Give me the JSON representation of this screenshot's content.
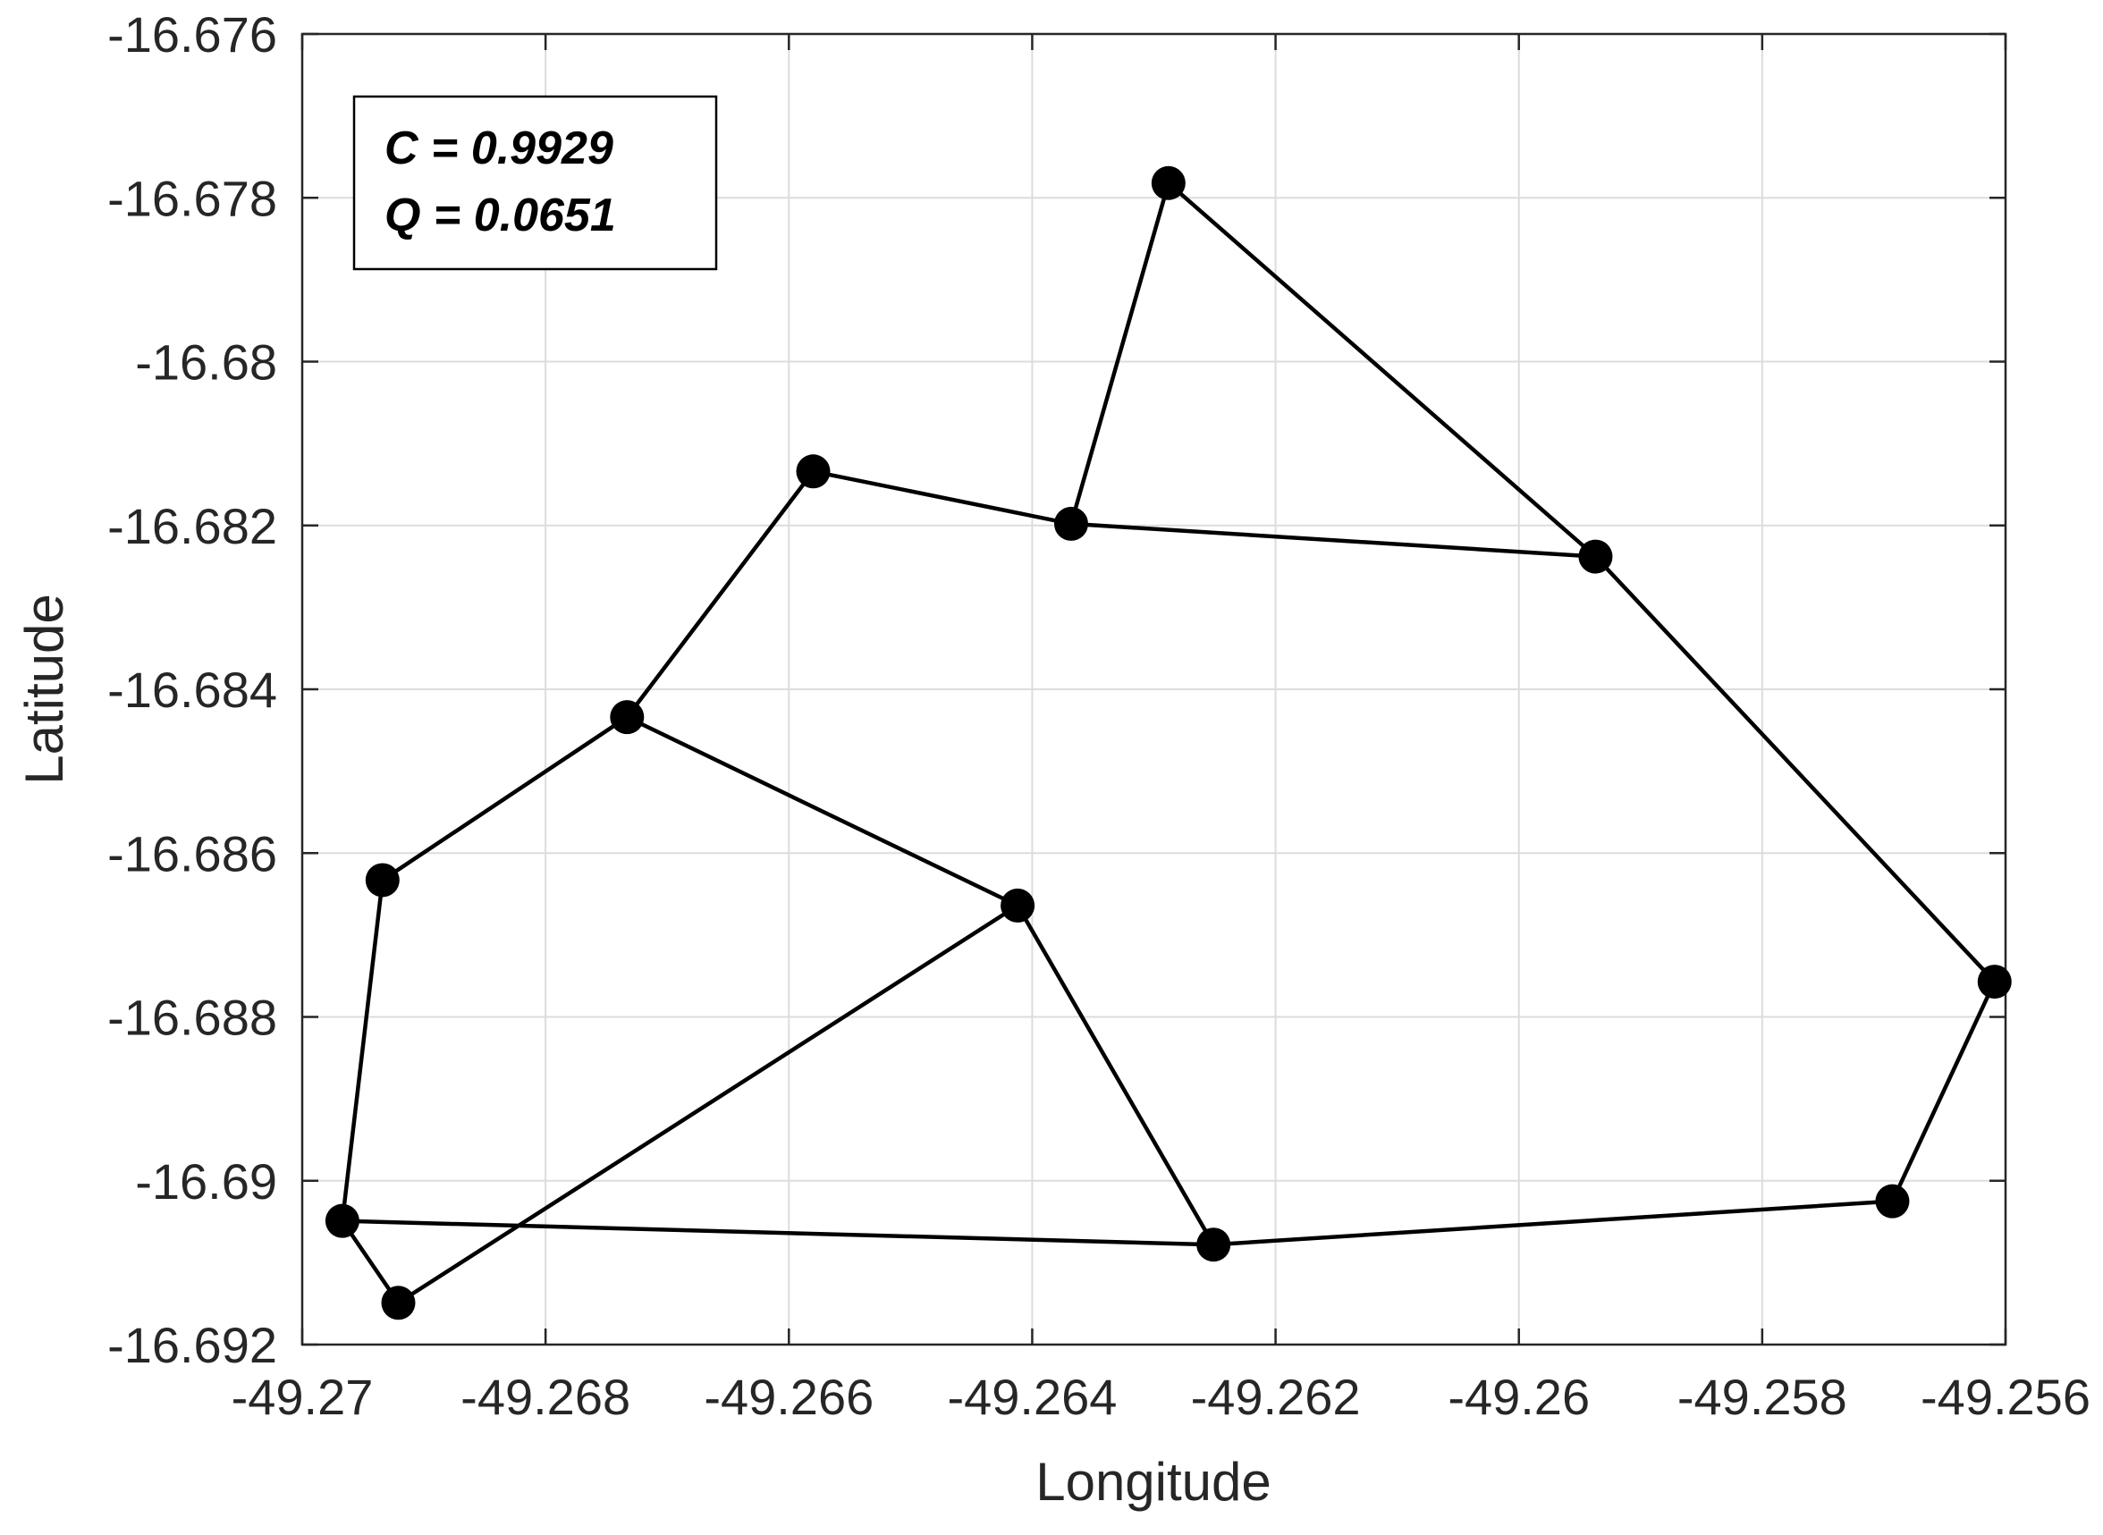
{
  "chart_data": {
    "type": "line",
    "title": "",
    "xlabel": "Longitude",
    "ylabel": "Latitude",
    "xlim": [
      -49.27,
      -49.256
    ],
    "ylim": [
      -16.692,
      -16.676
    ],
    "grid": true,
    "xticks": [
      -49.27,
      -49.268,
      -49.266,
      -49.264,
      -49.262,
      -49.26,
      -49.258,
      -49.256
    ],
    "xtick_labels": [
      "-49.27",
      "-49.268",
      "-49.266",
      "-49.264",
      "-49.262",
      "-49.26",
      "-49.258",
      "-49.256"
    ],
    "yticks": [
      -16.676,
      -16.678,
      -16.68,
      -16.682,
      -16.684,
      -16.686,
      -16.688,
      -16.69,
      -16.692
    ],
    "ytick_labels": [
      "-16.676",
      "-16.678",
      "-16.68",
      "-16.682",
      "-16.684",
      "-16.686",
      "-16.688",
      "-16.69",
      "-16.692"
    ],
    "nodes": [
      {
        "x": -49.26288,
        "y": -16.67782
      },
      {
        "x": -49.26368,
        "y": -16.68198
      },
      {
        "x": -49.2658,
        "y": -16.68134
      },
      {
        "x": -49.26733,
        "y": -16.68434
      },
      {
        "x": -49.26934,
        "y": -16.68633
      },
      {
        "x": -49.26967,
        "y": -16.69049
      },
      {
        "x": -49.26921,
        "y": -16.69149
      },
      {
        "x": -49.26412,
        "y": -16.68664
      },
      {
        "x": -49.26251,
        "y": -16.69078
      },
      {
        "x": -49.25693,
        "y": -16.69025
      },
      {
        "x": -49.25609,
        "y": -16.68757
      },
      {
        "x": -49.25937,
        "y": -16.68238
      }
    ],
    "edges": [
      [
        0,
        1
      ],
      [
        1,
        2
      ],
      [
        2,
        3
      ],
      [
        3,
        4
      ],
      [
        4,
        5
      ],
      [
        5,
        6
      ],
      [
        6,
        7
      ],
      [
        7,
        3
      ],
      [
        7,
        8
      ],
      [
        8,
        5
      ],
      [
        8,
        9
      ],
      [
        9,
        10
      ],
      [
        10,
        11
      ],
      [
        11,
        1
      ],
      [
        11,
        0
      ]
    ],
    "marker_color": "#000000",
    "line_color": "#000000",
    "annotation_lines": [
      "C = 0.9929",
      "Q = 0.0651"
    ]
  }
}
